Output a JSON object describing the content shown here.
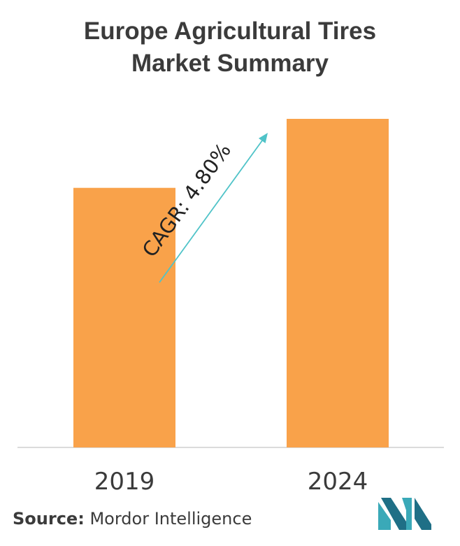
{
  "chart_data": {
    "type": "bar",
    "title_lines": [
      "Europe Agricultural Tires",
      "Market Summary"
    ],
    "categories": [
      "2019",
      "2024"
    ],
    "values": [
      0.79,
      1.0
    ],
    "ylim": [
      0,
      1.0
    ],
    "grid": false,
    "annotation": "CAGR: 4.80%",
    "bar_color": "#f9a24a",
    "arrow_color": "#4fc3c8"
  },
  "footer": {
    "source_label": "Source:",
    "source_value": "Mordor Intelligence"
  },
  "logo_colors": [
    "#3aa9b8",
    "#1f6f86"
  ]
}
